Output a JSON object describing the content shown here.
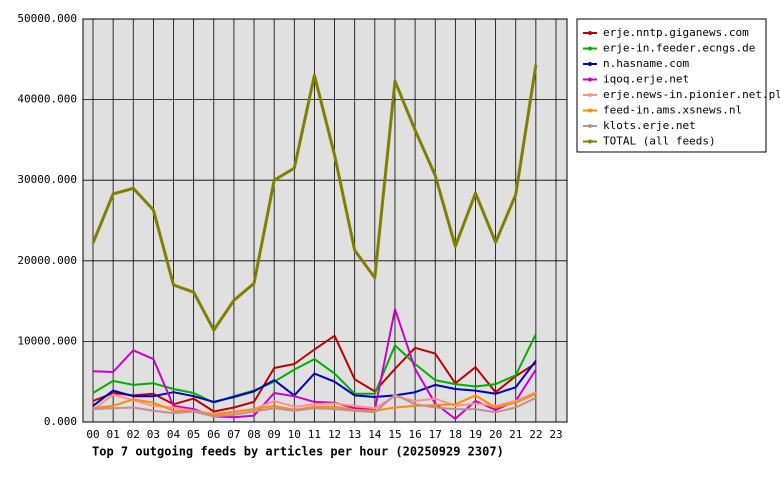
{
  "chart_data": {
    "type": "line",
    "title": "Top 7 outgoing feeds by articles per hour (20250929 2307)",
    "categories": [
      "00",
      "01",
      "02",
      "03",
      "04",
      "05",
      "06",
      "07",
      "08",
      "09",
      "10",
      "11",
      "12",
      "13",
      "14",
      "15",
      "16",
      "17",
      "18",
      "19",
      "20",
      "21",
      "22",
      "23"
    ],
    "ylim": [
      0,
      50000
    ],
    "yticks": [
      {
        "value": 0,
        "label": "0.000"
      },
      {
        "value": 10000,
        "label": "10000.000"
      },
      {
        "value": 20000,
        "label": "20000.000"
      },
      {
        "value": 30000,
        "label": "30000.000"
      },
      {
        "value": 40000,
        "label": "40000.000"
      },
      {
        "value": 50000,
        "label": "50000.000"
      }
    ],
    "grid": true,
    "legend": "right",
    "series": [
      {
        "name": "erje.nntp.giganews.com",
        "color": "#c00000",
        "values": [
          2600,
          3600,
          3300,
          3500,
          2200,
          2900,
          1300,
          1800,
          2500,
          6700,
          7200,
          9000,
          10700,
          5300,
          3800,
          6600,
          9200,
          8500,
          4800,
          6800,
          3700,
          5700,
          7300,
          null
        ]
      },
      {
        "name": "erje-in.feeder.ecngs.de",
        "color": "#00b000",
        "values": [
          3600,
          5100,
          4600,
          4800,
          4100,
          3600,
          2400,
          3200,
          3900,
          5000,
          6500,
          7800,
          6000,
          3500,
          3500,
          9500,
          7200,
          5200,
          4700,
          4400,
          4700,
          5800,
          10900,
          null
        ]
      },
      {
        "name": "n.hasname.com",
        "color": "#0000c0",
        "values": [
          2000,
          3900,
          3200,
          3200,
          3700,
          3200,
          2500,
          3100,
          3800,
          5200,
          3300,
          6000,
          5000,
          3300,
          3100,
          3300,
          3700,
          4600,
          4100,
          3900,
          3500,
          4300,
          7600,
          null
        ]
      },
      {
        "name": "iqoq.erje.net",
        "color": "#cc00cc",
        "values": [
          6300,
          6200,
          8900,
          7800,
          2000,
          1600,
          700,
          600,
          800,
          3600,
          3200,
          2500,
          2400,
          1700,
          1500,
          14000,
          6600,
          2300,
          400,
          2600,
          1500,
          2600,
          6500,
          null
        ]
      },
      {
        "name": "erje.news-in.pionier.net.pl",
        "color": "#ff9090",
        "values": [
          1500,
          3400,
          2700,
          2000,
          1800,
          1400,
          1000,
          1300,
          1600,
          2600,
          1900,
          2200,
          2300,
          2000,
          1700,
          3200,
          2600,
          2900,
          2000,
          2300,
          2000,
          2600,
          3700,
          null
        ]
      },
      {
        "name": "feed-in.ams.xsnews.nl",
        "color": "#ff8c00",
        "values": [
          1700,
          2000,
          2800,
          2400,
          1400,
          1300,
          900,
          1200,
          1600,
          2000,
          1500,
          1900,
          1900,
          1500,
          1400,
          1800,
          2000,
          2100,
          2200,
          3300,
          1800,
          2400,
          3500,
          null
        ]
      },
      {
        "name": "klots.erje.net",
        "color": "#c09090",
        "values": [
          1600,
          1700,
          1800,
          1400,
          1100,
          1300,
          700,
          900,
          1300,
          1700,
          1400,
          1700,
          1600,
          1400,
          1200,
          3400,
          2200,
          1800,
          1600,
          1600,
          1200,
          1800,
          3000,
          null
        ]
      },
      {
        "name": "TOTAL (all feeds)",
        "color": "#808000",
        "values": [
          22200,
          28300,
          29000,
          26300,
          17000,
          16100,
          11400,
          15100,
          17200,
          30000,
          31500,
          43000,
          33100,
          21300,
          17900,
          42300,
          36200,
          30600,
          21800,
          28400,
          22300,
          28200,
          44300,
          null
        ]
      }
    ]
  }
}
